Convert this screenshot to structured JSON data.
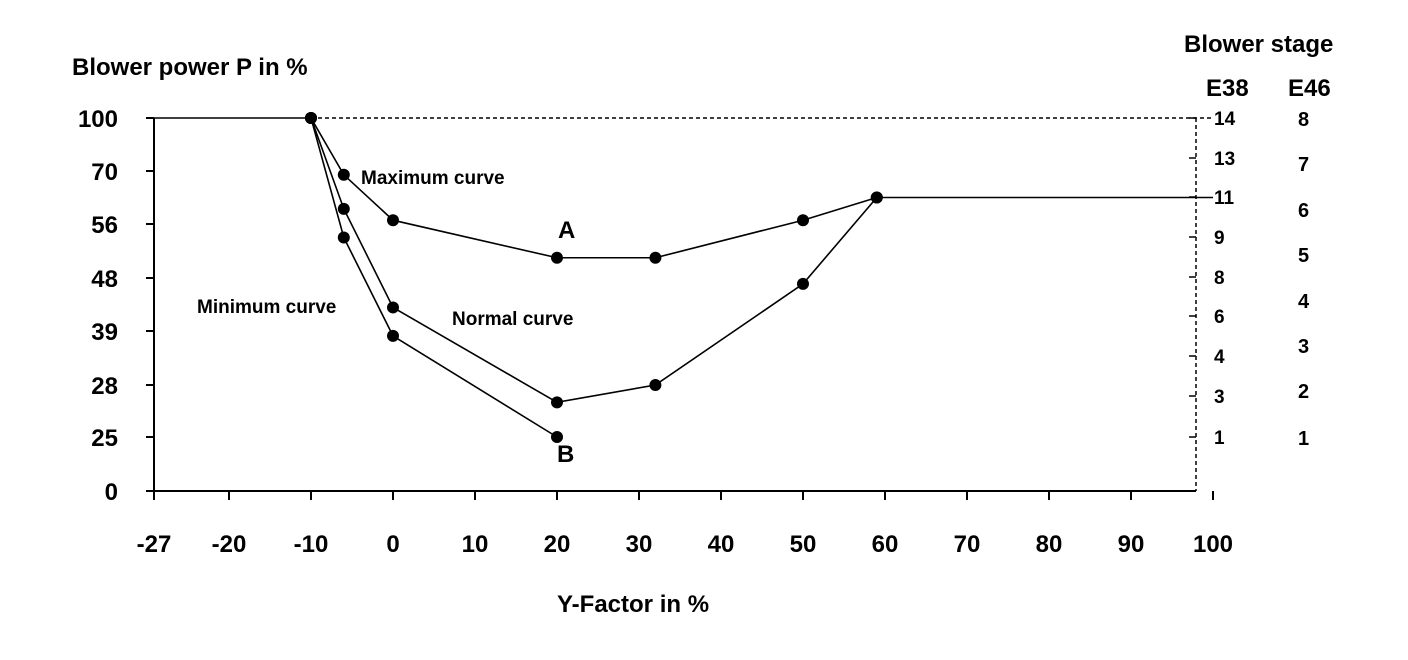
{
  "chart_data": {
    "type": "line",
    "xlabel": "Y-Factor in %",
    "ylabel": "Blower power P in %",
    "right_title": "Blower stage",
    "x_ticks": [
      "-27",
      "-20",
      "-10",
      "0",
      "10",
      "20",
      "30",
      "40",
      "50",
      "60",
      "70",
      "80",
      "90",
      "100"
    ],
    "y_ticks": [
      "0",
      "25",
      "28",
      "39",
      "48",
      "56",
      "70",
      "100"
    ],
    "right_axes": [
      {
        "name": "E38",
        "ticks": [
          "14",
          "13",
          "11",
          "9",
          "8",
          "6",
          "4",
          "3",
          "1"
        ]
      },
      {
        "name": "E46",
        "ticks": [
          "8",
          "7",
          "6",
          "5",
          "4",
          "3",
          "2",
          "1"
        ]
      }
    ],
    "flat_line": {
      "x": [
        -27,
        -10
      ],
      "y": [
        100,
        100
      ]
    },
    "right_line": {
      "x": [
        59,
        100
      ],
      "y": [
        63,
        63
      ]
    },
    "dashed_top": {
      "x": [
        -10,
        100
      ],
      "y": [
        100,
        100
      ]
    },
    "series": [
      {
        "name": "Maximum curve",
        "x": [
          -10,
          -6,
          0,
          20,
          32,
          50,
          59
        ],
        "y": [
          100,
          69,
          57,
          51,
          51,
          57,
          63
        ]
      },
      {
        "name": "Normal curve",
        "x": [
          -10,
          -6,
          0,
          20,
          32,
          50,
          59
        ],
        "y": [
          100,
          60,
          43,
          27,
          28,
          47,
          63
        ]
      },
      {
        "name": "Minimum curve",
        "x": [
          -10,
          -6,
          0,
          20
        ],
        "y": [
          100,
          54,
          38,
          25
        ]
      }
    ],
    "annotations": [
      {
        "text": "A",
        "x": 20,
        "y": 51
      },
      {
        "text": "B",
        "x": 20,
        "y": 25
      }
    ]
  }
}
